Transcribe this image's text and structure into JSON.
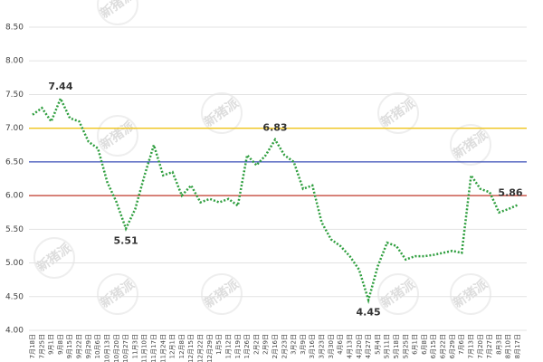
{
  "chart_data": {
    "type": "line",
    "watermark": "新猪派",
    "categories": [
      "7月18日",
      "7月25日",
      "9月1日",
      "9月8日",
      "9月15日",
      "9月22日",
      "9月29日",
      "10月6日",
      "10月13日",
      "10月20日",
      "10月27日",
      "11月3日",
      "11月10日",
      "11月17日",
      "11月24日",
      "12月1日",
      "12月8日",
      "12月15日",
      "12月22日",
      "12月29日",
      "1月5日",
      "1月12日",
      "1月19日",
      "1月26日",
      "2月2日",
      "2月9日",
      "2月16日",
      "2月23日",
      "3月2日",
      "3月9日",
      "3月16日",
      "3月23日",
      "3月30日",
      "4月6日",
      "4月13日",
      "4月20日",
      "4月27日",
      "5月4日",
      "5月11日",
      "5月18日",
      "5月25日",
      "6月1日",
      "6月8日",
      "6月15日",
      "6月22日",
      "6月29日",
      "7月6日",
      "7月13日",
      "7月20日",
      "7月27日",
      "8月3日",
      "8月10日",
      "8月17日"
    ],
    "series": [
      {
        "color": "#2e9e3e",
        "values": [
          7.2,
          7.3,
          7.1,
          7.44,
          7.15,
          7.1,
          6.8,
          6.7,
          6.2,
          5.9,
          5.51,
          5.8,
          6.3,
          6.75,
          6.3,
          6.35,
          6.0,
          6.15,
          5.9,
          5.95,
          5.9,
          5.95,
          5.85,
          6.6,
          6.45,
          6.6,
          6.83,
          6.6,
          6.5,
          6.1,
          6.15,
          5.6,
          5.35,
          5.25,
          5.1,
          4.9,
          4.45,
          4.95,
          5.3,
          5.25,
          5.05,
          5.1,
          5.1,
          5.12,
          5.15,
          5.18,
          5.15,
          6.3,
          6.1,
          6.05,
          5.75,
          5.8,
          5.86
        ]
      }
    ],
    "reference_lines": [
      {
        "value": 7,
        "color": "#f0c419"
      },
      {
        "value": 6.5,
        "color": "#3a4fb8"
      },
      {
        "value": 6,
        "color": "#c0392b"
      }
    ],
    "ylim": [
      4,
      8.5
    ],
    "yticks": [
      {
        "value": 4,
        "label": "4.00"
      },
      {
        "value": 4.5,
        "label": "4.50"
      },
      {
        "value": 5,
        "label": "5.00"
      },
      {
        "value": 5.5,
        "label": "5.50"
      },
      {
        "value": 6,
        "label": "6.00"
      },
      {
        "value": 6.5,
        "label": "6.50"
      },
      {
        "value": 7,
        "label": "7.00"
      },
      {
        "value": 7.5,
        "label": "7.50"
      },
      {
        "value": 8,
        "label": "8.00"
      },
      {
        "value": 8.5,
        "label": "8.50"
      }
    ],
    "grid": true
  }
}
